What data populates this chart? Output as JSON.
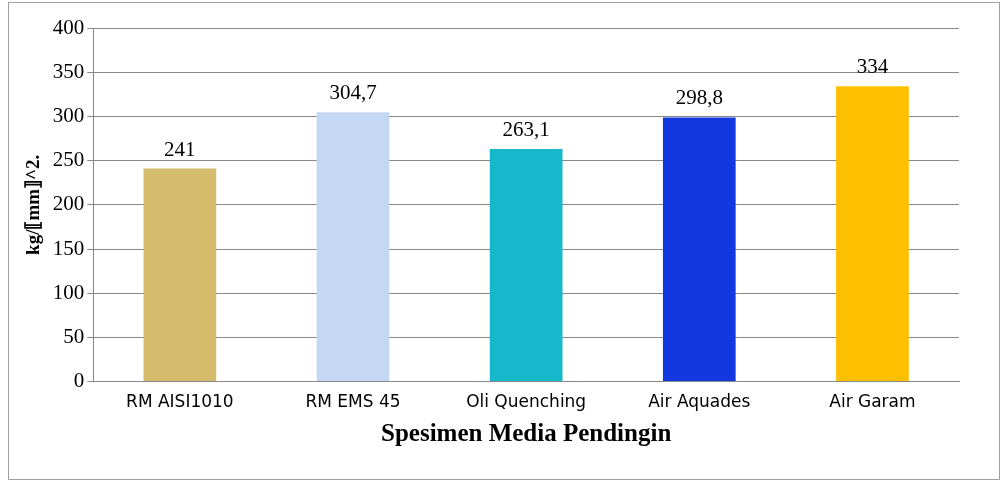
{
  "chart_data": {
    "type": "bar",
    "xlabel": "Spesimen Media Pendingin",
    "ylabel": "kg/⟦mm⟧^2.",
    "categories": [
      "RM AISI1010",
      "RM EMS 45",
      "Oli Quenching",
      "Air Aquades",
      "Air Garam"
    ],
    "values": [
      241,
      304.7,
      263.1,
      298.8,
      334
    ],
    "value_labels": [
      "241",
      "304,7",
      "263,1",
      "298,8",
      "334"
    ],
    "colors": [
      "#d4bc6c",
      "#c4d8f4",
      "#18b8cc",
      "#1438e0",
      "#ffc000"
    ],
    "ylim": [
      0,
      400
    ],
    "yticks": [
      0,
      50,
      100,
      150,
      200,
      250,
      300,
      350,
      400
    ],
    "grid": "y",
    "legend": false
  }
}
